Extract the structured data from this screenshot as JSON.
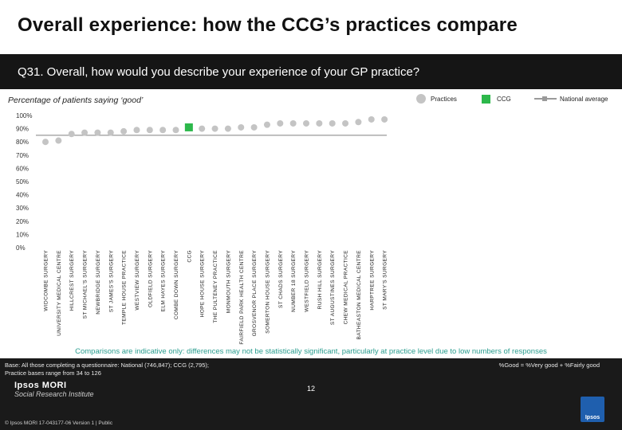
{
  "header": {
    "title": "Overall experience: how the CCG’s practices compare",
    "question": "Q31. Overall, how would you describe your experience of your GP practice?"
  },
  "chart_data": {
    "type": "scatter",
    "title": "Percentage of patients saying ‘good’",
    "ylabel": "",
    "xlabel": "",
    "ylim": [
      0,
      100
    ],
    "y_ticks": [
      "0%",
      "10%",
      "20%",
      "30%",
      "40%",
      "50%",
      "60%",
      "70%",
      "80%",
      "90%",
      "100%"
    ],
    "legend": {
      "position": "top-right",
      "practices": "Practices",
      "ccg": "CCG",
      "national": "National average"
    },
    "categories": [
      "WIDCOMBE SURGERY",
      "UNIVERSITY MEDICAL CENTRE",
      "HILLCREST SURGERY",
      "ST MICHAEL'S SURGERY",
      "NEWBRIDGE SURGERY",
      "ST JAMES'S SURGERY",
      "TEMPLE HOUSE PRACTICE",
      "WESTVIEW SURGERY",
      "OLDFIELD SURGERY",
      "ELM HAYES SURGERY",
      "COMBE DOWN SURGERY",
      "CCG",
      "HOPE HOUSE SURGERY",
      "THE PULTENEY PRACTICE",
      "MONMOUTH SURGERY",
      "FAIRFIELD PARK HEALTH CENTRE",
      "GROSVENOR PLACE SURGERY",
      "SOMERTON HOUSE SURGERY",
      "ST CHADS SURGERY",
      "NUMBER 18 SURGERY",
      "WESTFIELD SURGERY",
      "RUSH HILL SURGERY",
      "ST AUGUSTINES SURGERY",
      "CHEW MEDICAL PRACTICE",
      "BATHEASTON MEDICAL CENTRE",
      "HARPTREE SURGERY",
      "ST MARY'S SURGERY"
    ],
    "values": [
      80,
      81,
      86,
      87,
      87,
      87,
      88,
      89,
      89,
      89,
      89,
      91,
      90,
      90,
      90,
      91,
      91,
      93,
      94,
      94,
      94,
      94,
      94,
      94,
      95,
      97,
      97
    ],
    "ccg_index": 11,
    "national_average": 85,
    "colors": {
      "practices": "#c4c4c4",
      "ccg": "#2db84b",
      "national": "#9a9a9a"
    }
  },
  "notes": {
    "comparison": "Comparisons are indicative only: differences may not be statistically significant, particularly at practice level due to low numbers of responses",
    "base": "Base: All those completing a questionnaire: National (746,847); CCG (2,795);\nPractice bases range from 34 to 126",
    "good_definition": "%Good = %Very good + %Fairly good"
  },
  "footer": {
    "logo_name": "Ipsos MORI",
    "logo_sub": "Social Research Institute",
    "copyright": "© Ipsos MORI     17-043177-06 Version 1 | Public",
    "page_number": "12",
    "ipsos_logo_text": "Ipsos"
  }
}
